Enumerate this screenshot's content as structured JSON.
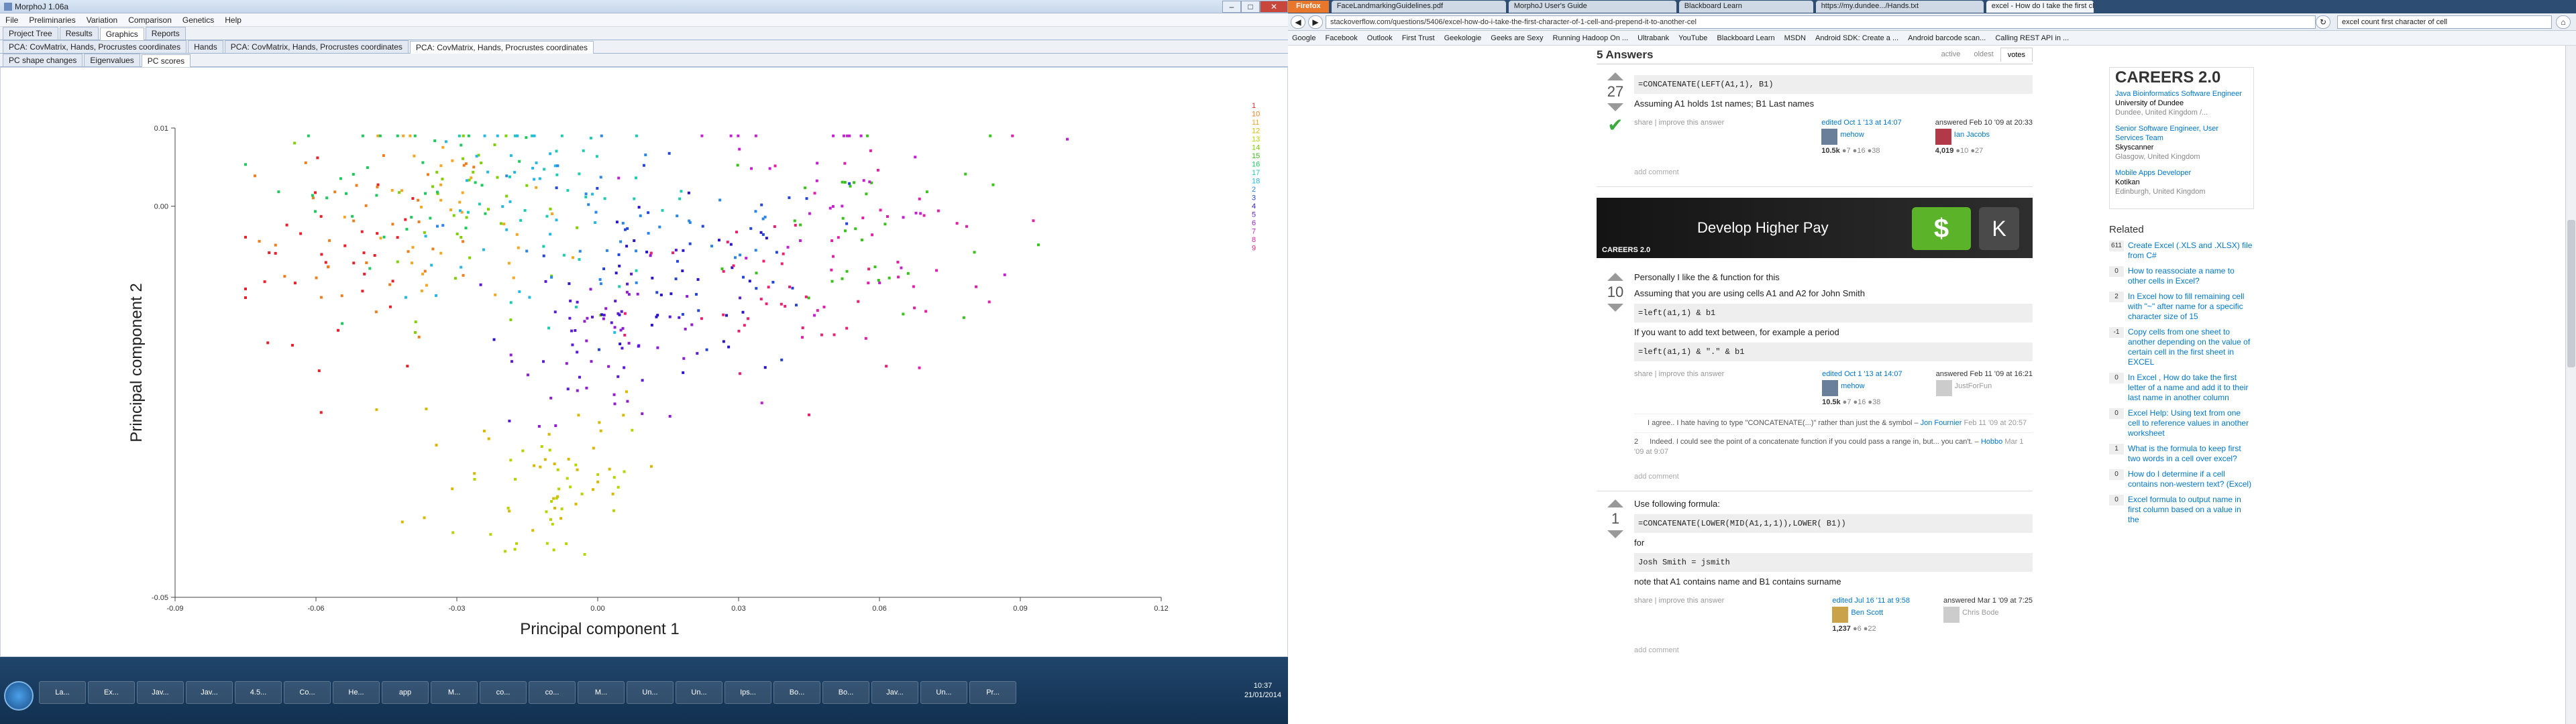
{
  "morpho": {
    "title": "MorphoJ 1.06a",
    "menu": [
      "File",
      "Preliminaries",
      "Variation",
      "Comparison",
      "Genetics",
      "Help"
    ],
    "tabs_row1": [
      "Project Tree",
      "Results",
      "Graphics",
      "Reports"
    ],
    "tabs_row1_active": 2,
    "tabs_row2": [
      "PCA: CovMatrix, Hands, Procrustes coordinates",
      "Hands",
      "PCA: CovMatrix, Hands, Procrustes coordinates",
      "PCA: CovMatrix, Hands, Procrustes coordinates"
    ],
    "tabs_row2_active": 3,
    "tabs_row3": [
      "PC shape changes",
      "Eigenvalues",
      "PC scores"
    ],
    "tabs_row3_active": 2
  },
  "chart_data": {
    "type": "scatter",
    "xlabel": "Principal component 1",
    "ylabel": "Principal component 2",
    "xlim": [
      -0.09,
      0.12
    ],
    "ylim": [
      -0.05,
      0.01
    ],
    "xticks": [
      "-0.09",
      "-0.06",
      "-0.03",
      "0.00",
      "0.03",
      "0.06",
      "0.09",
      "0.12"
    ],
    "yticks": [
      "0.01",
      "0.00",
      "-0.05"
    ],
    "ytick_values": [
      0.01,
      0.0,
      -0.05
    ],
    "legend_labels": [
      "1",
      "10",
      "11",
      "12",
      "13",
      "14",
      "15",
      "16",
      "17",
      "18",
      "2",
      "3",
      "4",
      "5",
      "6",
      "7",
      "8",
      "9"
    ],
    "legend_colors": [
      "#e8202a",
      "#ee7d1e",
      "#f5a623",
      "#d8b800",
      "#b5d400",
      "#7fd000",
      "#39c21a",
      "#1ec85c",
      "#1ccbb0",
      "#25b7e6",
      "#2a86e8",
      "#2346d9",
      "#2a16c8",
      "#5b1ad4",
      "#8f1ed2",
      "#c41fd0",
      "#e020a6",
      "#ec2070"
    ],
    "series_centers": [
      [
        -0.055,
        -0.008
      ],
      [
        -0.047,
        -0.004
      ],
      [
        -0.032,
        -0.003
      ],
      [
        -0.015,
        -0.032
      ],
      [
        -0.008,
        -0.037
      ],
      [
        -0.028,
        0.0
      ],
      [
        0.055,
        -0.003
      ],
      [
        -0.04,
        0.004
      ],
      [
        -0.005,
        0.001
      ],
      [
        -0.02,
        0.0
      ],
      [
        0.01,
        -0.002
      ],
      [
        0.02,
        -0.008
      ],
      [
        0.015,
        -0.012
      ],
      [
        0.005,
        -0.015
      ],
      [
        0.005,
        -0.018
      ],
      [
        0.045,
        0.003
      ],
      [
        0.06,
        -0.005
      ],
      [
        0.035,
        -0.014
      ]
    ],
    "series_spread": [
      [
        0.018,
        0.01
      ],
      [
        0.018,
        0.009
      ],
      [
        0.018,
        0.009
      ],
      [
        0.02,
        0.008
      ],
      [
        0.015,
        0.008
      ],
      [
        0.015,
        0.01
      ],
      [
        0.02,
        0.01
      ],
      [
        0.02,
        0.008
      ],
      [
        0.02,
        0.009
      ],
      [
        0.015,
        0.009
      ],
      [
        0.03,
        0.01
      ],
      [
        0.03,
        0.01
      ],
      [
        0.02,
        0.008
      ],
      [
        0.015,
        0.007
      ],
      [
        0.015,
        0.007
      ],
      [
        0.025,
        0.01
      ],
      [
        0.02,
        0.01
      ],
      [
        0.02,
        0.01
      ]
    ],
    "points_per_series": 34
  },
  "taskbar": {
    "items": [
      "La...",
      "Ex...",
      "Jav...",
      "Jav...",
      "4.5...",
      "Co...",
      "He...",
      "app",
      "M...",
      "co...",
      "co...",
      "M...",
      "Un...",
      "Un...",
      "Ips...",
      "Bo...",
      "Bo...",
      "Jav...",
      "Un...",
      "Pr..."
    ],
    "time": "10:37",
    "date": "21/01/2014"
  },
  "browser": {
    "ff_label": "Firefox",
    "tabs": [
      "FaceLandmarkingGuidelines.pdf",
      "MorphoJ User's Guide",
      "Blackboard Learn",
      "https://my.dundee.../Hands.txt",
      "excel - How do I take the first character of..."
    ],
    "active_tab": 4,
    "url": "stackoverflow.com/questions/5406/excel-how-do-i-take-the-first-character-of-1-cell-and-prepend-it-to-another-cel",
    "search": "excel count first character of cell",
    "bookmarks": [
      "Google",
      "Facebook",
      "Outlook",
      "First Trust",
      "Geekologie",
      "Geeks are Sexy",
      "Running Hadoop On ...",
      "Ultrabank",
      "YouTube",
      "Blackboard Learn",
      "MSDN",
      "Android SDK: Create a ...",
      "Android barcode scan...",
      "Calling REST API in ..."
    ],
    "answers_title": "5 Answers",
    "sorts": [
      "active",
      "oldest",
      "votes"
    ],
    "answers": [
      {
        "votes": "27",
        "accepted": true,
        "code1": "=CONCATENATE(LEFT(A1,1), B1)",
        "text1": "Assuming A1 holds 1st names; B1 Last names",
        "links": "share | improve this answer",
        "edited": "edited Oct 1 '13 at 14:07",
        "editor": "mehow",
        "editor_rep": "10.5k",
        "editor_badges": "●7 ●16 ●38",
        "answered": "answered Feb 10 '09 at 20:33",
        "author": "Ian Jacobs",
        "author_rep": "4,019",
        "author_badges": "●10 ●27",
        "add_comment": "add comment"
      },
      {
        "votes": "10",
        "text1": "Personally I like the & function for this",
        "text2": "Assuming that you are using cells A1 and A2 for John Smith",
        "code1": "=left(a1,1) & b1",
        "text3": "If you want to add text between, for example a period",
        "code2": "=left(a1,1) & \".\" & b1",
        "links": "share | improve this answer",
        "edited": "edited Oct 1 '13 at 14:07",
        "editor": "mehow",
        "editor_rep": "10.5k",
        "editor_badges": "●7 ●16 ●38",
        "answered": "answered Feb 11 '09 at 16:21",
        "author": "JustForFun",
        "comment1": "I agree.. I hate having to type \"CONCATENATE(...)\" rather than just the & symbol –",
        "comment1_author": "Jon Fournier",
        "comment1_date": "Feb 11 '09 at 20:57",
        "comment2_score": "2",
        "comment2": "Indeed. I could see the point of a concatenate function if you could pass a range in, but... you can't. –",
        "comment2_author": "Hobbo",
        "comment2_date": "Mar 1 '09 at 9:07",
        "add_comment": "add comment"
      },
      {
        "votes": "1",
        "text1": "Use following formula:",
        "code1": "=CONCATENATE(LOWER(MID(A1,1,1)),LOWER( B1))",
        "text2": "for",
        "code2": "Josh Smith = jsmith",
        "text3": "note that A1 contains name and B1 contains surname",
        "links": "share | improve this answer",
        "edited": "edited Jul 16 '11 at 9:58",
        "editor": "Ben Scott",
        "editor_rep": "1,237",
        "editor_badges": "●6 ●22",
        "answered": "answered Mar 1 '09 at 7:25",
        "author": "Chris Bode",
        "add_comment": "add comment"
      }
    ],
    "ad": {
      "text": "Develop Higher Pay",
      "key1": "$",
      "key2": "K",
      "logo": "CAREERS 2.0"
    },
    "careers": {
      "logo": "CAREERS 2.0",
      "jobs": [
        {
          "title": "Java Bioinformatics Software Engineer",
          "company": "University of Dundee",
          "location": "Dundee, United Kingdom /..."
        },
        {
          "title": "Senior Software Engineer, User Services Team",
          "company": "Skyscanner",
          "location": "Glasgow, United Kingdom"
        },
        {
          "title": "Mobile Apps Developer",
          "company": "Kotikan",
          "location": "Edinburgh, United Kingdom"
        }
      ]
    },
    "related_title": "Related",
    "related": [
      {
        "count": "611",
        "title": "Create Excel (.XLS and .XLSX) file from C#"
      },
      {
        "count": "0",
        "title": "How to reassociate a name to other cells in Excel?"
      },
      {
        "count": "2",
        "title": "In Excel how to fill remaining cell with \"~\" after name for a specific character size of 15"
      },
      {
        "count": "-1",
        "title": "Copy cells from one sheet to another depending on the value of certain cell in the first sheet in EXCEL"
      },
      {
        "count": "0",
        "title": "In Excel , How do take the first letter of a name and add it to their last name in another column"
      },
      {
        "count": "0",
        "title": "Excel Help: Using text from one cell to reference values in another worksheet"
      },
      {
        "count": "1",
        "title": "What is the formula to keep first two words in a cell over excel?"
      },
      {
        "count": "0",
        "title": "How do I determine if a cell contains non-western text? (Excel)"
      },
      {
        "count": "0",
        "title": "Excel formula to output name in first column based on a value in the"
      }
    ]
  }
}
